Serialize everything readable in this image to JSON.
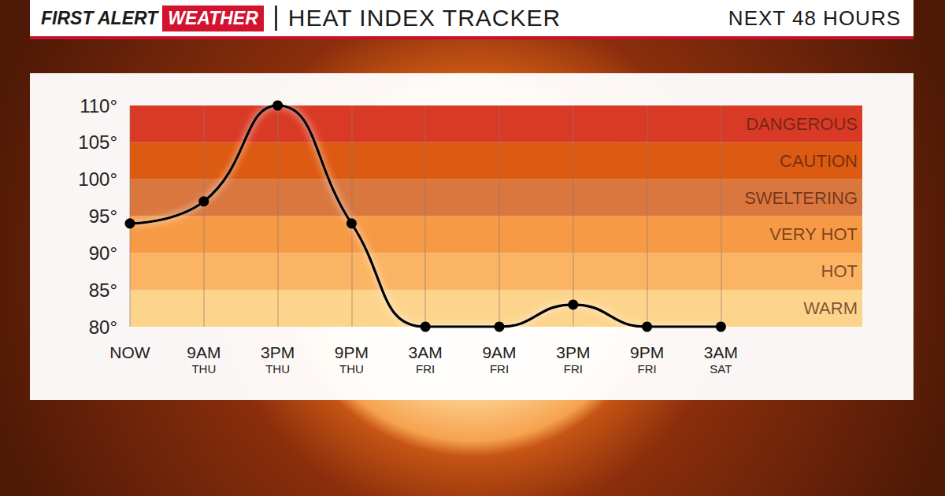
{
  "header": {
    "brand": "FIRST ALERT",
    "brand_box": "WEATHER"
  },
  "chart_data": {
    "type": "line",
    "title": "HEAT INDEX TRACKER",
    "subtitle": "NEXT 48 HOURS",
    "categories": [
      "NOW",
      "9AM\nTHU",
      "3PM\nTHU",
      "9PM\nTHU",
      "3AM\nFRI",
      "9AM\nFRI",
      "3PM\nFRI",
      "9PM\nFRI",
      "3AM\nSAT"
    ],
    "values": [
      94,
      97,
      110,
      94,
      80,
      80,
      83,
      80,
      80
    ],
    "color": "#000000",
    "marker": "circle",
    "line_style": "smooth",
    "grid": true,
    "ylim": [
      80,
      110
    ],
    "yticks": [
      {
        "value": 80,
        "label": "80°"
      },
      {
        "value": 85,
        "label": "85°"
      },
      {
        "value": 90,
        "label": "90°"
      },
      {
        "value": 95,
        "label": "95°"
      },
      {
        "value": 100,
        "label": "100°"
      },
      {
        "value": 105,
        "label": "105°"
      },
      {
        "value": 110,
        "label": "110°"
      }
    ],
    "bands": [
      {
        "label": "WARM",
        "from": 80,
        "to": 85,
        "color": "#fdd48c"
      },
      {
        "label": "HOT",
        "from": 85,
        "to": 90,
        "color": "#fbb463"
      },
      {
        "label": "VERY HOT",
        "from": 90,
        "to": 95,
        "color": "#f79a45"
      },
      {
        "label": "SWELTERING",
        "from": 95,
        "to": 100,
        "color": "#d9773f"
      },
      {
        "label": "CAUTION",
        "from": 100,
        "to": 105,
        "color": "#dd5a12"
      },
      {
        "label": "DANGEROUS",
        "from": 105,
        "to": 110,
        "color": "#d93a25"
      }
    ]
  }
}
